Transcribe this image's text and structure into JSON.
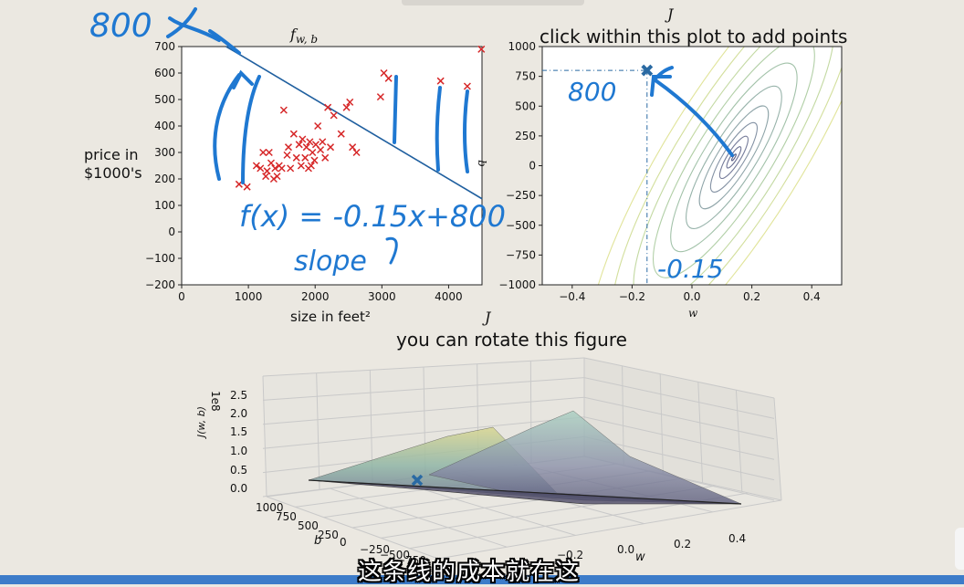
{
  "chart_data": [
    {
      "type": "scatter",
      "title": "f_{w,b}",
      "xlabel": "size in feet²",
      "ylabel_line1": "price in",
      "ylabel_line2": "$1000's",
      "xlim": [
        0,
        4500
      ],
      "ylim": [
        -200,
        700
      ],
      "xticks": [
        "0",
        "1000",
        "2000",
        "3000",
        "4000"
      ],
      "xtick_values": [
        0,
        1000,
        2000,
        3000,
        4000
      ],
      "yticks": [
        "700",
        "600",
        "500",
        "400",
        "300",
        "200",
        "100",
        "0",
        "−100",
        "−200"
      ],
      "ytick_values": [
        700,
        600,
        500,
        400,
        300,
        200,
        100,
        0,
        -100,
        -200
      ],
      "marker_color": "#d62728",
      "line_color": "#1f5f9f",
      "line": {
        "w": -0.15,
        "b": 800
      },
      "points": [
        [
          860,
          180
        ],
        [
          980,
          170
        ],
        [
          1120,
          250
        ],
        [
          1180,
          240
        ],
        [
          1220,
          300
        ],
        [
          1260,
          210
        ],
        [
          1280,
          230
        ],
        [
          1310,
          300
        ],
        [
          1340,
          260
        ],
        [
          1380,
          200
        ],
        [
          1400,
          240
        ],
        [
          1430,
          210
        ],
        [
          1460,
          250
        ],
        [
          1500,
          240
        ],
        [
          1530,
          460
        ],
        [
          1580,
          290
        ],
        [
          1600,
          320
        ],
        [
          1630,
          240
        ],
        [
          1680,
          370
        ],
        [
          1720,
          280
        ],
        [
          1760,
          330
        ],
        [
          1790,
          250
        ],
        [
          1810,
          350
        ],
        [
          1850,
          280
        ],
        [
          1870,
          320
        ],
        [
          1900,
          240
        ],
        [
          1920,
          340
        ],
        [
          1940,
          250
        ],
        [
          1960,
          300
        ],
        [
          1990,
          270
        ],
        [
          2010,
          330
        ],
        [
          2040,
          400
        ],
        [
          2080,
          310
        ],
        [
          2110,
          340
        ],
        [
          2150,
          280
        ],
        [
          2190,
          470
        ],
        [
          2230,
          320
        ],
        [
          2280,
          440
        ],
        [
          2390,
          370
        ],
        [
          2470,
          470
        ],
        [
          2520,
          490
        ],
        [
          2560,
          320
        ],
        [
          2620,
          300
        ],
        [
          2980,
          510
        ],
        [
          3030,
          600
        ],
        [
          3100,
          580
        ],
        [
          3880,
          570
        ],
        [
          4280,
          550
        ],
        [
          4490,
          690
        ]
      ]
    },
    {
      "type": "contour",
      "title_symbol": "J",
      "title": "click within this plot to add points",
      "xlabel": "w",
      "ylabel": "b",
      "xlim": [
        -0.5,
        0.5
      ],
      "ylim": [
        -1000,
        1000
      ],
      "xticks": [
        "−0.4",
        "−0.2",
        "0.0",
        "0.2",
        "0.4"
      ],
      "xtick_values": [
        -0.4,
        -0.2,
        0.0,
        0.2,
        0.4
      ],
      "yticks": [
        "1000",
        "750",
        "500",
        "250",
        "0",
        "−250",
        "−500",
        "−750",
        "−1000"
      ],
      "ytick_values": [
        1000,
        750,
        500,
        250,
        0,
        -250,
        -500,
        -750,
        -1000
      ],
      "minimum": {
        "w": 0.14,
        "b": 70
      },
      "selected_point": {
        "w": -0.15,
        "b": 800
      },
      "marker_color": "#2a6aa3"
    },
    {
      "type": "surface",
      "title_symbol": "J",
      "title": "you can rotate this figure",
      "zlabel": "J(w, b)",
      "z_scale": "1e8",
      "zticks": [
        "2.5",
        "2.0",
        "1.5",
        "1.0",
        "0.5",
        "0.0"
      ],
      "b_ticks": [
        "1000",
        "750",
        "500",
        "250",
        "0",
        "−250",
        "−500",
        "−750"
      ],
      "b_label": "b",
      "w_ticks": [
        "−0.2",
        "0.0",
        "0.2",
        "0.4"
      ],
      "w_label": "w"
    }
  ],
  "annotations": {
    "corner_800": "800",
    "contour_800": "800",
    "contour_w": "-0.15",
    "equation": "f(x) = -0.15x+800",
    "slope": "slope"
  },
  "subtitle": "这条线的成本就在这",
  "colors": {
    "background": "#ebe8e1",
    "ink": "#1f78d1",
    "subtitle_bar": "#3d7cc9"
  }
}
